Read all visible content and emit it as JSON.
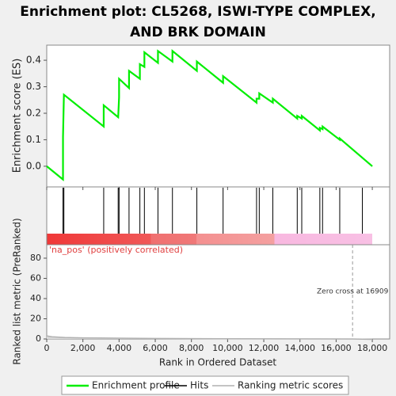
{
  "chart_data": {
    "type": "line",
    "title": "Enrichment plot: CL5268, ISWI-TYPE COMPLEX, AND BRK DOMAIN",
    "xlabel": "Rank in Ordered Dataset",
    "ylabel": "Enrichment score (ES)",
    "xlim": [
      0,
      18960
    ],
    "xticks": [
      0,
      {
        "value": 2000,
        "label": "2,000"
      },
      {
        "value": 4000,
        "label": "4,000"
      },
      {
        "value": 6000,
        "label": "6,000"
      },
      {
        "value": 8000,
        "label": "8,000"
      },
      {
        "value": 10000,
        "label": "10,000"
      },
      {
        "value": 12000,
        "label": "12,000"
      },
      {
        "value": 14000,
        "label": "14,000"
      },
      {
        "value": 16000,
        "label": "16,000"
      },
      {
        "value": 18000,
        "label": "18,000"
      }
    ],
    "ylim": [
      -0.078,
      0.457
    ],
    "yticks": [
      {
        "value": 0,
        "label": "0.0"
      },
      0.1,
      0.2,
      0.3,
      0.4
    ],
    "series": [
      {
        "name": "Enrichment profile",
        "color": "#00ee00",
        "x": [
          0,
          900,
          900,
          950,
          3150,
          3150,
          3950,
          4000,
          4000,
          4550,
          4550,
          5150,
          5150,
          5400,
          5400,
          6150,
          6150,
          6950,
          6950,
          8300,
          8300,
          9750,
          9750,
          11600,
          11600,
          11750,
          11750,
          12500,
          12500,
          13850,
          13850,
          14100,
          14100,
          15100,
          15100,
          15250,
          15250,
          16200,
          16200,
          18000
        ],
        "values": [
          0,
          -0.05,
          0.11,
          0.27,
          0.15,
          0.23,
          0.185,
          0.26,
          0.33,
          0.295,
          0.36,
          0.33,
          0.385,
          0.375,
          0.43,
          0.39,
          0.435,
          0.395,
          0.435,
          0.36,
          0.395,
          0.315,
          0.34,
          0.24,
          0.255,
          0.255,
          0.275,
          0.24,
          0.255,
          0.18,
          0.19,
          0.18,
          0.19,
          0.135,
          0.145,
          0.14,
          0.15,
          0.1,
          0.105,
          0
        ]
      }
    ],
    "hits": {
      "name": "Hits",
      "color": "#000000",
      "x": [
        900,
        950,
        3150,
        3950,
        4000,
        4550,
        5150,
        5400,
        6150,
        6950,
        8300,
        9750,
        11600,
        11750,
        12500,
        13850,
        14100,
        15100,
        15250,
        16200,
        17450
      ]
    },
    "metric": {
      "name": "Ranking metric scores",
      "color": "#b0b0b0",
      "ylabel": "Ranked list metric (PreRanked)",
      "ylim": [
        0,
        93.3
      ],
      "yticks": [
        0,
        20,
        40,
        60,
        80
      ],
      "x": [
        0,
        300,
        1000,
        2000,
        4000,
        6000,
        10000,
        16909,
        18000
      ],
      "values": [
        3,
        2.2,
        1.5,
        1.1,
        0.8,
        0.5,
        0.2,
        0,
        -0.4
      ]
    },
    "pos_label": "'na_pos' (positively correlated)",
    "zero_cross": {
      "value": 16909,
      "label": "Zero cross at 16909"
    }
  }
}
